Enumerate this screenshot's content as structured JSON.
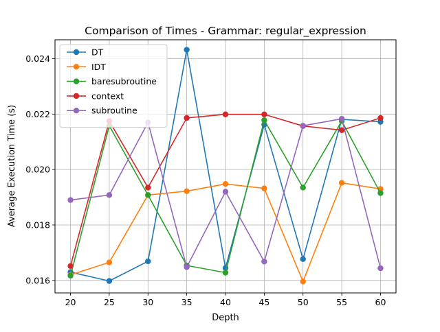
{
  "chart_data": {
    "type": "line",
    "title": "Comparison of Times - Grammar: regular_expression",
    "xlabel": "Depth",
    "ylabel": "Average Execution Time (s)",
    "x": [
      20,
      25,
      30,
      35,
      40,
      45,
      50,
      55,
      60
    ],
    "xticks": [
      "20",
      "25",
      "30",
      "35",
      "40",
      "45",
      "50",
      "55",
      "60"
    ],
    "yticks": [
      "0.016",
      "0.018",
      "0.020",
      "0.022",
      "0.024"
    ],
    "xlim": [
      18,
      62
    ],
    "ylim": [
      0.01555,
      0.02468
    ],
    "grid": true,
    "legend_position": "top-left",
    "series": [
      {
        "name": "DT",
        "color": "#1f77b4",
        "values": [
          0.0163,
          0.01598,
          0.01669,
          0.02432,
          0.01645,
          0.02162,
          0.01677,
          0.02181,
          0.02172
        ]
      },
      {
        "name": "IDT",
        "color": "#ff7f0e",
        "values": [
          0.0162,
          0.01665,
          0.01908,
          0.01922,
          0.01948,
          0.01932,
          0.01596,
          0.01952,
          0.0193
        ]
      },
      {
        "name": "baresubroutine",
        "color": "#2ca02c",
        "values": [
          0.01617,
          0.02158,
          0.01908,
          0.01654,
          0.01628,
          0.02178,
          0.01935,
          0.02175,
          0.01915
        ]
      },
      {
        "name": "context",
        "color": "#d62728",
        "values": [
          0.01652,
          0.02175,
          0.01935,
          0.02186,
          0.02199,
          0.02199,
          0.02157,
          0.02142,
          0.02186
        ]
      },
      {
        "name": "subroutine",
        "color": "#9467bd",
        "values": [
          0.0189,
          0.01908,
          0.0217,
          0.01648,
          0.0192,
          0.01668,
          0.02158,
          0.02183,
          0.01644
        ]
      }
    ]
  }
}
